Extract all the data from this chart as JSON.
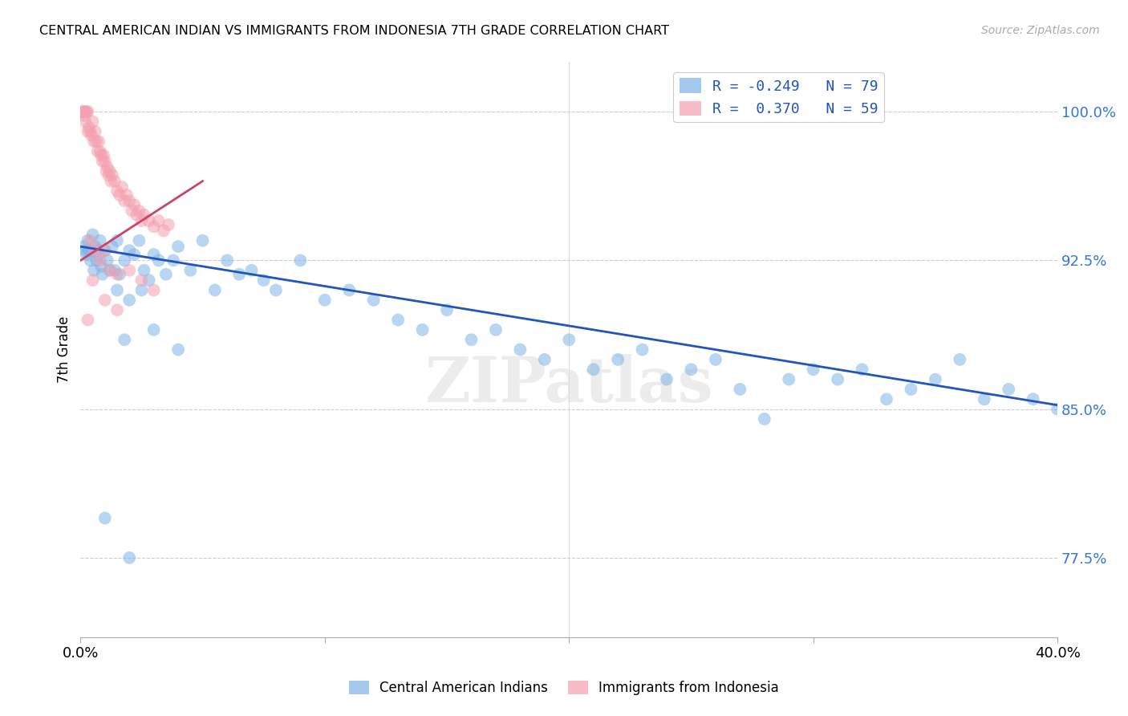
{
  "title": "CENTRAL AMERICAN INDIAN VS IMMIGRANTS FROM INDONESIA 7TH GRADE CORRELATION CHART",
  "source": "Source: ZipAtlas.com",
  "ylabel": "7th Grade",
  "yticks": [
    100.0,
    92.5,
    85.0,
    77.5
  ],
  "ytick_labels": [
    "100.0%",
    "92.5%",
    "85.0%",
    "77.5%"
  ],
  "xmin": 0.0,
  "xmax": 40.0,
  "ymin": 73.5,
  "ymax": 102.5,
  "blue_color": "#7EB3E8",
  "pink_color": "#F4A0B0",
  "trendline_blue": "#2255BB",
  "trendline_pink": "#CC4466",
  "watermark": "ZIPatlas",
  "blue_points": [
    [
      0.15,
      93.2
    ],
    [
      0.2,
      93.0
    ],
    [
      0.25,
      92.8
    ],
    [
      0.3,
      93.5
    ],
    [
      0.35,
      93.0
    ],
    [
      0.4,
      92.5
    ],
    [
      0.5,
      93.8
    ],
    [
      0.55,
      92.0
    ],
    [
      0.6,
      93.2
    ],
    [
      0.65,
      92.5
    ],
    [
      0.7,
      93.0
    ],
    [
      0.75,
      92.8
    ],
    [
      0.8,
      93.5
    ],
    [
      0.85,
      92.2
    ],
    [
      0.9,
      91.8
    ],
    [
      1.0,
      93.0
    ],
    [
      1.1,
      92.5
    ],
    [
      1.2,
      92.0
    ],
    [
      1.3,
      93.2
    ],
    [
      1.4,
      92.0
    ],
    [
      1.5,
      93.5
    ],
    [
      1.6,
      91.8
    ],
    [
      1.8,
      92.5
    ],
    [
      2.0,
      93.0
    ],
    [
      2.2,
      92.8
    ],
    [
      2.4,
      93.5
    ],
    [
      2.6,
      92.0
    ],
    [
      2.8,
      91.5
    ],
    [
      3.0,
      92.8
    ],
    [
      3.2,
      92.5
    ],
    [
      3.5,
      91.8
    ],
    [
      3.8,
      92.5
    ],
    [
      4.0,
      93.2
    ],
    [
      4.5,
      92.0
    ],
    [
      5.0,
      93.5
    ],
    [
      5.5,
      91.0
    ],
    [
      6.0,
      92.5
    ],
    [
      6.5,
      91.8
    ],
    [
      7.0,
      92.0
    ],
    [
      7.5,
      91.5
    ],
    [
      8.0,
      91.0
    ],
    [
      9.0,
      92.5
    ],
    [
      10.0,
      90.5
    ],
    [
      11.0,
      91.0
    ],
    [
      12.0,
      90.5
    ],
    [
      13.0,
      89.5
    ],
    [
      14.0,
      89.0
    ],
    [
      15.0,
      90.0
    ],
    [
      16.0,
      88.5
    ],
    [
      17.0,
      89.0
    ],
    [
      18.0,
      88.0
    ],
    [
      19.0,
      87.5
    ],
    [
      20.0,
      88.5
    ],
    [
      21.0,
      87.0
    ],
    [
      22.0,
      87.5
    ],
    [
      23.0,
      88.0
    ],
    [
      24.0,
      86.5
    ],
    [
      25.0,
      87.0
    ],
    [
      26.0,
      87.5
    ],
    [
      27.0,
      86.0
    ],
    [
      28.0,
      84.5
    ],
    [
      29.0,
      86.5
    ],
    [
      30.0,
      87.0
    ],
    [
      31.0,
      86.5
    ],
    [
      32.0,
      87.0
    ],
    [
      33.0,
      85.5
    ],
    [
      34.0,
      86.0
    ],
    [
      35.0,
      86.5
    ],
    [
      36.0,
      87.5
    ],
    [
      37.0,
      85.5
    ],
    [
      38.0,
      86.0
    ],
    [
      39.0,
      85.5
    ],
    [
      40.0,
      85.0
    ],
    [
      1.5,
      91.0
    ],
    [
      2.0,
      90.5
    ],
    [
      2.5,
      91.0
    ],
    [
      1.8,
      88.5
    ],
    [
      3.0,
      89.0
    ],
    [
      4.0,
      88.0
    ],
    [
      1.0,
      79.5
    ],
    [
      2.0,
      77.5
    ]
  ],
  "pink_points": [
    [
      0.1,
      100.0
    ],
    [
      0.15,
      100.0
    ],
    [
      0.2,
      100.0
    ],
    [
      0.25,
      100.0
    ],
    [
      0.3,
      100.0
    ],
    [
      0.1,
      100.0
    ],
    [
      0.15,
      99.8
    ],
    [
      0.2,
      99.5
    ],
    [
      0.3,
      99.0
    ],
    [
      0.35,
      99.2
    ],
    [
      0.4,
      99.0
    ],
    [
      0.45,
      98.8
    ],
    [
      0.5,
      99.5
    ],
    [
      0.55,
      98.5
    ],
    [
      0.6,
      99.0
    ],
    [
      0.65,
      98.5
    ],
    [
      0.7,
      98.0
    ],
    [
      0.75,
      98.5
    ],
    [
      0.8,
      98.0
    ],
    [
      0.85,
      97.8
    ],
    [
      0.9,
      97.5
    ],
    [
      0.95,
      97.8
    ],
    [
      1.0,
      97.5
    ],
    [
      1.05,
      97.0
    ],
    [
      1.1,
      97.2
    ],
    [
      1.15,
      96.8
    ],
    [
      1.2,
      97.0
    ],
    [
      1.25,
      96.5
    ],
    [
      1.3,
      96.8
    ],
    [
      1.4,
      96.5
    ],
    [
      1.5,
      96.0
    ],
    [
      1.6,
      95.8
    ],
    [
      1.7,
      96.2
    ],
    [
      1.8,
      95.5
    ],
    [
      1.9,
      95.8
    ],
    [
      2.0,
      95.5
    ],
    [
      2.1,
      95.0
    ],
    [
      2.2,
      95.3
    ],
    [
      2.3,
      94.8
    ],
    [
      2.4,
      95.0
    ],
    [
      2.5,
      94.5
    ],
    [
      2.6,
      94.8
    ],
    [
      2.8,
      94.5
    ],
    [
      3.0,
      94.2
    ],
    [
      3.2,
      94.5
    ],
    [
      3.4,
      94.0
    ],
    [
      3.6,
      94.3
    ],
    [
      0.4,
      93.5
    ],
    [
      0.6,
      93.0
    ],
    [
      0.8,
      92.5
    ],
    [
      1.0,
      93.0
    ],
    [
      1.2,
      92.0
    ],
    [
      1.5,
      91.8
    ],
    [
      2.0,
      92.0
    ],
    [
      2.5,
      91.5
    ],
    [
      3.0,
      91.0
    ],
    [
      0.5,
      91.5
    ],
    [
      1.0,
      90.5
    ],
    [
      1.5,
      90.0
    ],
    [
      0.3,
      89.5
    ]
  ],
  "blue_trend_x": [
    0.0,
    40.0
  ],
  "blue_trend_y": [
    93.2,
    85.2
  ],
  "pink_trend_x": [
    0.0,
    5.0
  ],
  "pink_trend_y": [
    92.5,
    96.5
  ]
}
